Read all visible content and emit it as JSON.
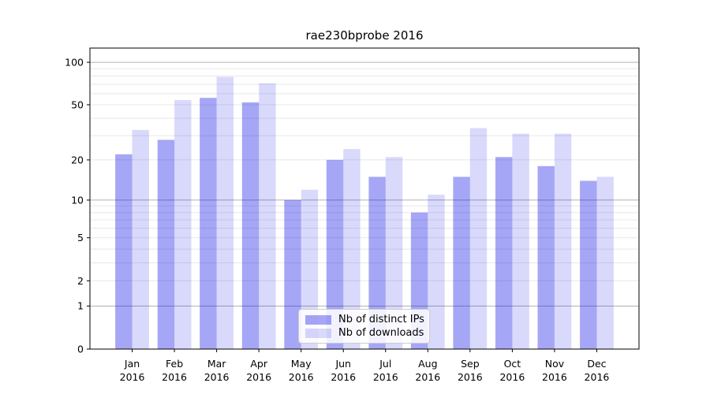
{
  "chart_data": {
    "type": "bar",
    "title": "rae230bprobe 2016",
    "categories": [
      "Jan 2016",
      "Feb 2016",
      "Mar 2016",
      "Apr 2016",
      "May 2016",
      "Jun 2016",
      "Jul 2016",
      "Aug 2016",
      "Sep 2016",
      "Oct 2016",
      "Nov 2016",
      "Dec 2016"
    ],
    "series": [
      {
        "name": "Nb of distinct IPs",
        "color": "rgba(0,0,230,0.35)",
        "values": [
          22,
          28,
          56,
          52,
          10,
          20,
          15,
          8,
          15,
          21,
          18,
          14
        ]
      },
      {
        "name": "Nb of downloads",
        "color": "rgba(0,0,230,0.15)",
        "values": [
          33,
          54,
          79,
          71,
          12,
          24,
          21,
          11,
          34,
          31,
          31,
          15
        ]
      }
    ],
    "xlabel": "",
    "ylabel": "",
    "y_ticks": [
      0,
      1,
      2,
      5,
      10,
      20,
      50,
      100
    ],
    "y_scale": "quasi-log: position proportional to log10(1+value), 0 at axis",
    "ylim": [
      0,
      125
    ],
    "grid": "major lines at 1/10/100 (darker) plus faint minor log lines",
    "legend_position": "inside lower-center",
    "colors": {
      "major_grid": "#b0b0b0",
      "minor_grid": "#e8e8e8",
      "axis": "#000000",
      "text": "#000000",
      "background": "#ffffff"
    }
  }
}
